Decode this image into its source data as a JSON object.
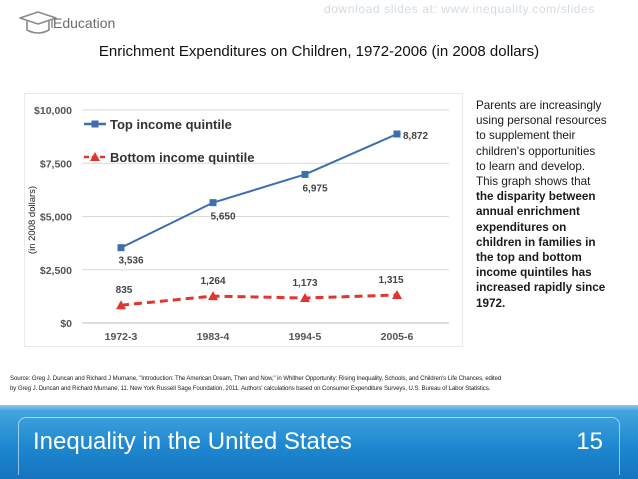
{
  "header": {
    "watermark": "download slides at: www.inequality.com/slides",
    "section": "Education",
    "logo_icon": "graduation-cap-icon"
  },
  "slide": {
    "title": "Enrichment Expenditures on Children, 1972-2006 (in 2008 dollars)"
  },
  "chart_data": {
    "type": "line",
    "title": "",
    "xlabel": "",
    "ylabel": "(in 2008 dollars)",
    "categories": [
      "1972-3",
      "1983-4",
      "1994-5",
      "2005-6"
    ],
    "ylim": [
      0,
      10000
    ],
    "yticks": [
      "$0",
      "$2,500",
      "$5,000",
      "$7,500",
      "$10,000"
    ],
    "ytick_values": [
      0,
      2500,
      5000,
      7500,
      10000
    ],
    "grid": true,
    "legend_position": "top-left",
    "series": [
      {
        "name": "Top income quintile",
        "values": [
          3536,
          5650,
          6975,
          8872
        ],
        "labels": [
          "3,536",
          "5,650",
          "6,975",
          "8,872"
        ],
        "color": "#3c6fb0",
        "style": "solid",
        "marker": "square"
      },
      {
        "name": "Bottom income quintile",
        "values": [
          835,
          1264,
          1173,
          1315
        ],
        "labels": [
          "835",
          "1,264",
          "1,173",
          "1,315"
        ],
        "color": "#e0362f",
        "style": "dashed",
        "marker": "triangle"
      }
    ]
  },
  "description": {
    "text_lines": [
      "Parents are increasingly",
      "using personal resources",
      "to supplement their",
      "children's opportunities",
      "to learn and develop.",
      "This graph shows that"
    ],
    "bold_lines": [
      "the disparity between",
      "annual enrichment",
      "expenditures on",
      "children in families in",
      "the top and bottom",
      "income quintiles has",
      "increased rapidly since",
      "1972."
    ]
  },
  "source": {
    "line1": "Source: Greg J. Duncan and Richard J Murnane, \"Introduction: The American Dream, Then and Now,\" in Whither Opportunity: Rising Inequality, Schools, and Children's Life Chances, edited",
    "line2": "by Greg J. Duncan and Richard Murnane, 11. New York Russell Sage Foundation, 2011. Authors' calculations based on Consumer Expenditure Surveys, U.S. Bureau of Labor Statistics."
  },
  "footer": {
    "title": "Inequality in the United States",
    "page": "15"
  },
  "colors": {
    "footer_blue": "#1e88d0",
    "top_series": "#3c6fb0",
    "bottom_series": "#e0362f"
  }
}
